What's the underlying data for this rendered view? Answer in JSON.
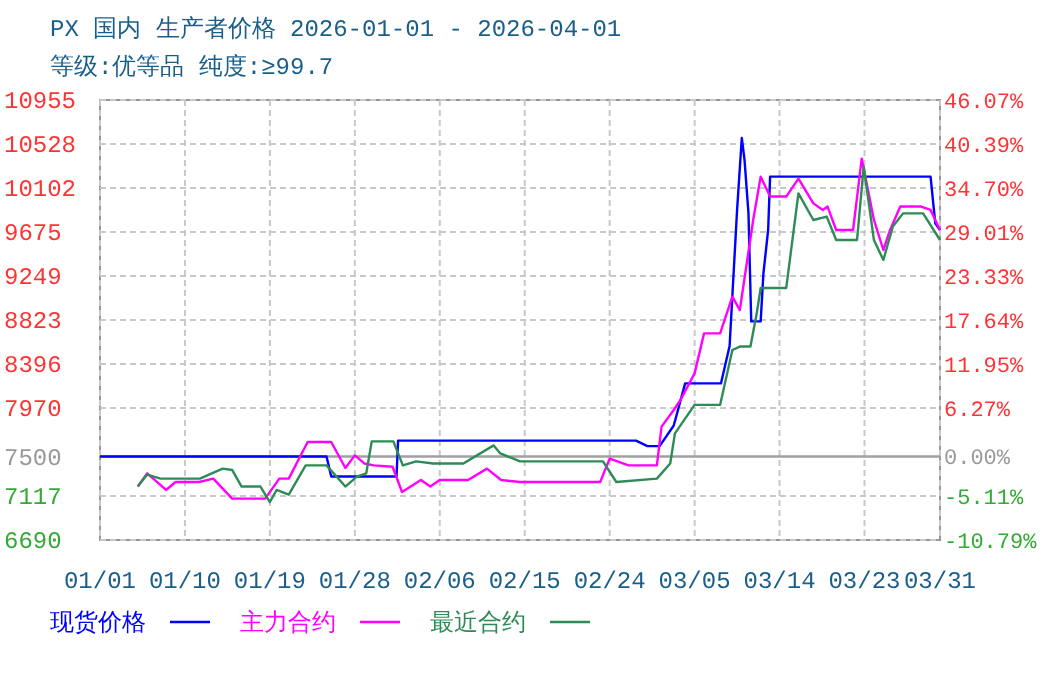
{
  "chart_data": {
    "type": "line",
    "title": "PX 国内 生产者价格 2026-01-01 - 2026-04-01",
    "subtitle": "等级:优等品 纯度:≥99.7",
    "xlim": [
      "2026-01-01",
      "2026-03-31"
    ],
    "xticks": [
      {
        "value": "2026-01-01",
        "label": "01/01"
      },
      {
        "value": "2026-01-10",
        "label": "01/10"
      },
      {
        "value": "2026-01-19",
        "label": "01/19"
      },
      {
        "value": "2026-01-28",
        "label": "01/28"
      },
      {
        "value": "2026-02-06",
        "label": "02/06"
      },
      {
        "value": "2026-02-15",
        "label": "02/15"
      },
      {
        "value": "2026-02-24",
        "label": "02/24"
      },
      {
        "value": "2026-03-05",
        "label": "03/05"
      },
      {
        "value": "2026-03-14",
        "label": "03/14"
      },
      {
        "value": "2026-03-23",
        "label": "03/23"
      },
      {
        "value": "2026-03-31",
        "label": "03/31"
      }
    ],
    "ylim": [
      6690,
      10955
    ],
    "yticks": [
      6690,
      7117,
      7500,
      7970,
      8396,
      8823,
      9249,
      9675,
      10102,
      10528,
      10955
    ],
    "y2lim": [
      -10.79,
      46.07
    ],
    "y2ticks": [
      {
        "value": -10.79,
        "label": "-10.79%"
      },
      {
        "value": -5.11,
        "label": "-5.11%"
      },
      {
        "value": 0,
        "label": "0.00%"
      },
      {
        "value": 6.27,
        "label": "6.27%"
      },
      {
        "value": 11.95,
        "label": "11.95%"
      },
      {
        "value": 17.64,
        "label": "17.64%"
      },
      {
        "value": 23.33,
        "label": "23.33%"
      },
      {
        "value": 29.01,
        "label": "29.01%"
      },
      {
        "value": 34.7,
        "label": "34.70%"
      },
      {
        "value": 40.39,
        "label": "40.39%"
      },
      {
        "value": 46.07,
        "label": "46.07%"
      }
    ],
    "ref_lines": [
      {
        "axis": "y",
        "value": 7500,
        "color": "#a0a0a0"
      }
    ],
    "grid": true,
    "legend": "bottom",
    "line_style": "solid",
    "marker": "none",
    "series": [
      {
        "name": "现货价格",
        "color": "#0000ff",
        "x": [
          "2026-01-01",
          "2026-01-25",
          "2026-01-25T12:00",
          "2026-02-01T10:00",
          "2026-02-01T14:00",
          "2026-02-26T19:00",
          "2026-02-28",
          "2026-03-01T07:00",
          "2026-03-02T19:00",
          "2026-03-04",
          "2026-03-07T19:00",
          "2026-03-08T17:00",
          "2026-03-09",
          "2026-03-09T12:00",
          "2026-03-10",
          "2026-03-10T07:00",
          "2026-03-10T17:00",
          "2026-03-11",
          "2026-03-12",
          "2026-03-12T07:00",
          "2026-03-12T19:00",
          "2026-03-13",
          "2026-03-30",
          "2026-03-30T12:00",
          "2026-03-31"
        ],
        "values": [
          7500,
          7500,
          7305,
          7305,
          7653,
          7653,
          7600,
          7600,
          7800,
          8208,
          8208,
          8570,
          9055,
          9888,
          10587,
          10373,
          9856,
          8809,
          8809,
          9274,
          9695,
          10212,
          10212,
          9759,
          9695
        ]
      },
      {
        "name": "主力合约",
        "color": "#ff00ff",
        "x": [
          "2026-01-05",
          "2026-01-06",
          "2026-01-08",
          "2026-01-09",
          "2026-01-11T12:00",
          "2026-01-13",
          "2026-01-15",
          "2026-01-18T12:00",
          "2026-01-20",
          "2026-01-21",
          "2026-01-23",
          "2026-01-25T12:00",
          "2026-01-27",
          "2026-01-28",
          "2026-01-29",
          "2026-01-30",
          "2026-02-01",
          "2026-02-02",
          "2026-02-04",
          "2026-02-05",
          "2026-02-06",
          "2026-02-09",
          "2026-02-11",
          "2026-02-12T12:00",
          "2026-02-14T12:00",
          "2026-02-23",
          "2026-02-24",
          "2026-02-26",
          "2026-03-01",
          "2026-03-01T12:00",
          "2026-03-02T19:00",
          "2026-03-03T12:00",
          "2026-03-05",
          "2026-03-06",
          "2026-03-07T17:00",
          "2026-03-09",
          "2026-03-09T19:00",
          "2026-03-11T05:00",
          "2026-03-12",
          "2026-03-13",
          "2026-03-14T17:00",
          "2026-03-16",
          "2026-03-17T14:00",
          "2026-03-18T14:00",
          "2026-03-19T02:00",
          "2026-03-20",
          "2026-03-21T19:00",
          "2026-03-22T17:00",
          "2026-03-24",
          "2026-03-25",
          "2026-03-25T17:00",
          "2026-03-26T19:00",
          "2026-03-29",
          "2026-03-30",
          "2026-03-31"
        ],
        "values": [
          7208,
          7336,
          7175,
          7252,
          7252,
          7285,
          7091,
          7091,
          7285,
          7285,
          7640,
          7640,
          7388,
          7510,
          7432,
          7413,
          7400,
          7155,
          7272,
          7208,
          7272,
          7272,
          7382,
          7272,
          7252,
          7252,
          7479,
          7413,
          7413,
          7789,
          7950,
          8047,
          8305,
          8693,
          8693,
          9049,
          8919,
          9792,
          10212,
          10019,
          10019,
          10193,
          9953,
          9889,
          9922,
          9695,
          9695,
          10387,
          9792,
          9501,
          9695,
          9922,
          9922,
          9889,
          9695
        ]
      },
      {
        "name": "最近合约",
        "color": "#2e8b57",
        "x": [
          "2026-01-05",
          "2026-01-06",
          "2026-01-07T10:00",
          "2026-01-11T14:00",
          "2026-01-14",
          "2026-01-15",
          "2026-01-16",
          "2026-01-18",
          "2026-01-19",
          "2026-01-19T17:00",
          "2026-01-21",
          "2026-01-22T19:00",
          "2026-01-25",
          "2026-01-27",
          "2026-01-28T05:00",
          "2026-01-29T05:00",
          "2026-01-29T19:00",
          "2026-02-01T02:00",
          "2026-02-02T02:00",
          "2026-02-03T12:00",
          "2026-02-05T07:00",
          "2026-02-08T12:00",
          "2026-02-11T17:00",
          "2026-02-12T10:00",
          "2026-02-14T12:00",
          "2026-02-23T07:00",
          "2026-02-24T17:00",
          "2026-03-01",
          "2026-03-02T10:00",
          "2026-03-02T22:00",
          "2026-03-05",
          "2026-03-07T17:00",
          "2026-03-09",
          "2026-03-09T19:00",
          "2026-03-10T22:00",
          "2026-03-11T14:00",
          "2026-03-12",
          "2026-03-14T17:00",
          "2026-03-16",
          "2026-03-17T14:00",
          "2026-03-19",
          "2026-03-20",
          "2026-03-22T05:00",
          "2026-03-22T22:00",
          "2026-03-24",
          "2026-03-25",
          "2026-03-26",
          "2026-03-27T02:00",
          "2026-03-29T05:00",
          "2026-03-31"
        ],
        "values": [
          7208,
          7324,
          7285,
          7285,
          7382,
          7369,
          7208,
          7208,
          7058,
          7175,
          7130,
          7413,
          7413,
          7208,
          7305,
          7336,
          7646,
          7646,
          7413,
          7452,
          7432,
          7432,
          7607,
          7529,
          7452,
          7452,
          7252,
          7285,
          7432,
          7723,
          8000,
          8000,
          8532,
          8565,
          8565,
          8887,
          9133,
          9133,
          10050,
          9792,
          9825,
          9598,
          9598,
          10309,
          9598,
          9404,
          9728,
          9856,
          9856,
          9598
        ]
      }
    ]
  }
}
